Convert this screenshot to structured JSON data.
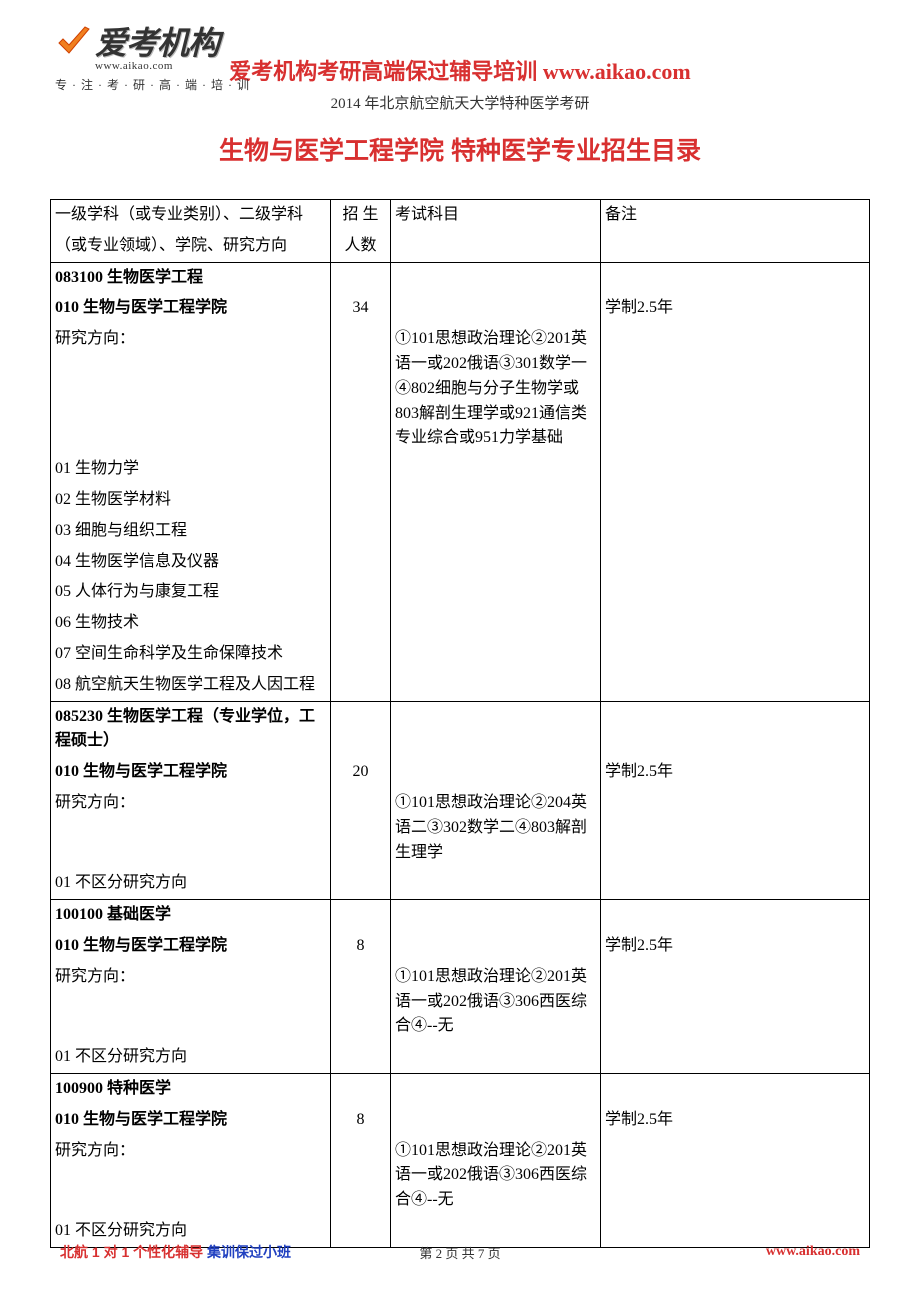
{
  "colors": {
    "red": "#d83030",
    "blue": "#2040c0",
    "orange": "#f08020",
    "black": "#000000",
    "gray_text": "#333333"
  },
  "logo": {
    "main_text": "爱考机构",
    "url_text": "www.aikao.com",
    "tagline": "专·注·考·研·高·端·培·训"
  },
  "header": {
    "line1_part1": "爱考机构考研高端保过辅导培训 ",
    "line1_part2": "www.aikao.com",
    "line2": "2014 年北京航空航天大学特种医学考研"
  },
  "page_title": "生物与医学工程学院 特种医学专业招生目录",
  "table": {
    "head": {
      "c1a": "一级学科（或专业类别）、二级学科",
      "c1b": "（或专业领域）、学院、研究方向",
      "c2a": "招 生",
      "c2b": "人数",
      "c3": "考试科目",
      "c4": "备注"
    },
    "sections": [
      {
        "code_line": "083100 生物医学工程",
        "school_line": "010 生物与医学工程学院",
        "count": "34",
        "note": "学制2.5年",
        "direction_label": "研究方向：",
        "exam": "①101思想政治理论②201英语一或202俄语③301数学一④802细胞与分子生物学或803解剖生理学或921通信类专业综合或951力学基础",
        "directions": [
          "01 生物力学",
          "02 生物医学材料",
          "03 细胞与组织工程",
          "04 生物医学信息及仪器",
          "05 人体行为与康复工程",
          "06 生物技术",
          "07 空间生命科学及生命保障技术",
          "08 航空航天生物医学工程及人因工程"
        ]
      },
      {
        "code_line": "085230 生物医学工程（专业学位，工程硕士）",
        "school_line": "010 生物与医学工程学院",
        "count": "20",
        "note": "学制2.5年",
        "direction_label": "研究方向：",
        "exam": "①101思想政治理论②204英语二③302数学二④803解剖生理学",
        "directions": [
          "01 不区分研究方向"
        ]
      },
      {
        "code_line": "100100 基础医学",
        "school_line": "010 生物与医学工程学院",
        "count": "8",
        "note": "学制2.5年",
        "direction_label": "研究方向：",
        "exam": "①101思想政治理论②201英语一或202俄语③306西医综合④--无",
        "directions": [
          "01 不区分研究方向"
        ]
      },
      {
        "code_line": "100900 特种医学",
        "school_line": "010 生物与医学工程学院",
        "count": "8",
        "note": "学制2.5年",
        "direction_label": "研究方向：",
        "exam": "①101思想政治理论②201英语一或202俄语③306西医综合④--无",
        "directions": [
          "01 不区分研究方向"
        ]
      }
    ]
  },
  "footer": {
    "left_p1": "北航 ",
    "left_p2": "1 ",
    "left_p3": "对 ",
    "left_p4": "1 ",
    "left_p5": "个性化辅导 ",
    "left_p6": "集训保过小班",
    "center": "第 2 页 共 7 页",
    "right": "www.aikao.com"
  }
}
